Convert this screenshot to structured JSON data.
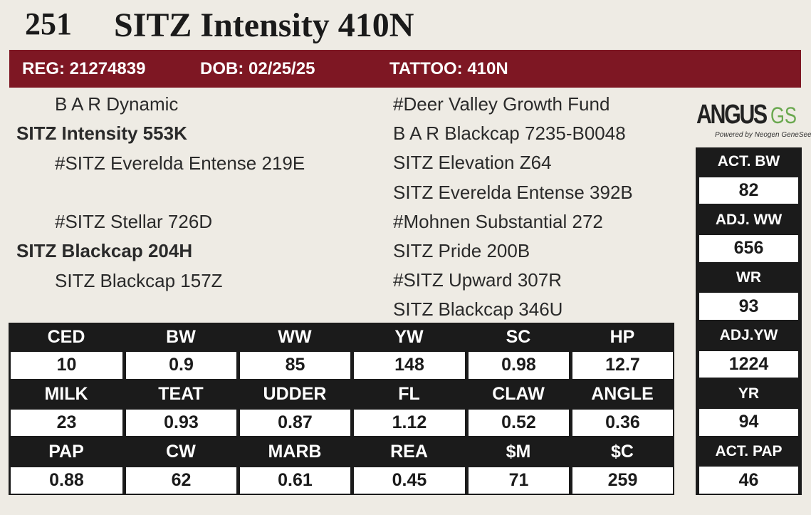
{
  "lot": "251",
  "name": "SITZ Intensity 410N",
  "header": {
    "reg": "REG: 21274839",
    "dob": "DOB: 02/25/25",
    "tattoo": "TATTOO: 410N"
  },
  "pedigree": {
    "sire": {
      "sire": "B A R Dynamic",
      "name": "SITZ Intensity 553K",
      "dam": "#SITZ Everelda Entense 219E"
    },
    "dam": {
      "sire": "#SITZ Stellar 726D",
      "name": "SITZ Blackcap 204H",
      "dam": "SITZ Blackcap 157Z"
    },
    "great_grandparents": [
      "#Deer Valley Growth Fund",
      "B A R Blackcap 7235-B0048",
      "SITZ Elevation Z64",
      "SITZ Everelda Entense 392B",
      "#Mohnen Substantial 272",
      "SITZ Pride 200B",
      "#SITZ Upward 307R",
      "SITZ Blackcap 346U"
    ]
  },
  "logo": {
    "brand": "ANGUS",
    "suffix": "GS",
    "tagline": "Powered by Neogen GeneSeek"
  },
  "epds": [
    {
      "headers": [
        "CED",
        "BW",
        "WW",
        "YW",
        "SC",
        "HP"
      ],
      "values": [
        10,
        0.9,
        85,
        148,
        0.98,
        12.7
      ]
    },
    {
      "headers": [
        "MILK",
        "TEAT",
        "UDDER",
        "FL",
        "CLAW",
        "ANGLE"
      ],
      "values": [
        23,
        0.93,
        0.87,
        1.12,
        0.52,
        0.36
      ]
    },
    {
      "headers": [
        "PAP",
        "CW",
        "MARB",
        "REA",
        "$M",
        "$C"
      ],
      "values": [
        0.88,
        62,
        0.61,
        0.45,
        71,
        259
      ]
    }
  ],
  "stats": [
    {
      "label": "ACT. BW",
      "value": 82
    },
    {
      "label": "ADJ. WW",
      "value": 656
    },
    {
      "label": "WR",
      "value": 93
    },
    {
      "label": "ADJ.YW",
      "value": 1224
    },
    {
      "label": "YR",
      "value": 94
    },
    {
      "label": "ACT. PAP",
      "value": 46
    }
  ]
}
